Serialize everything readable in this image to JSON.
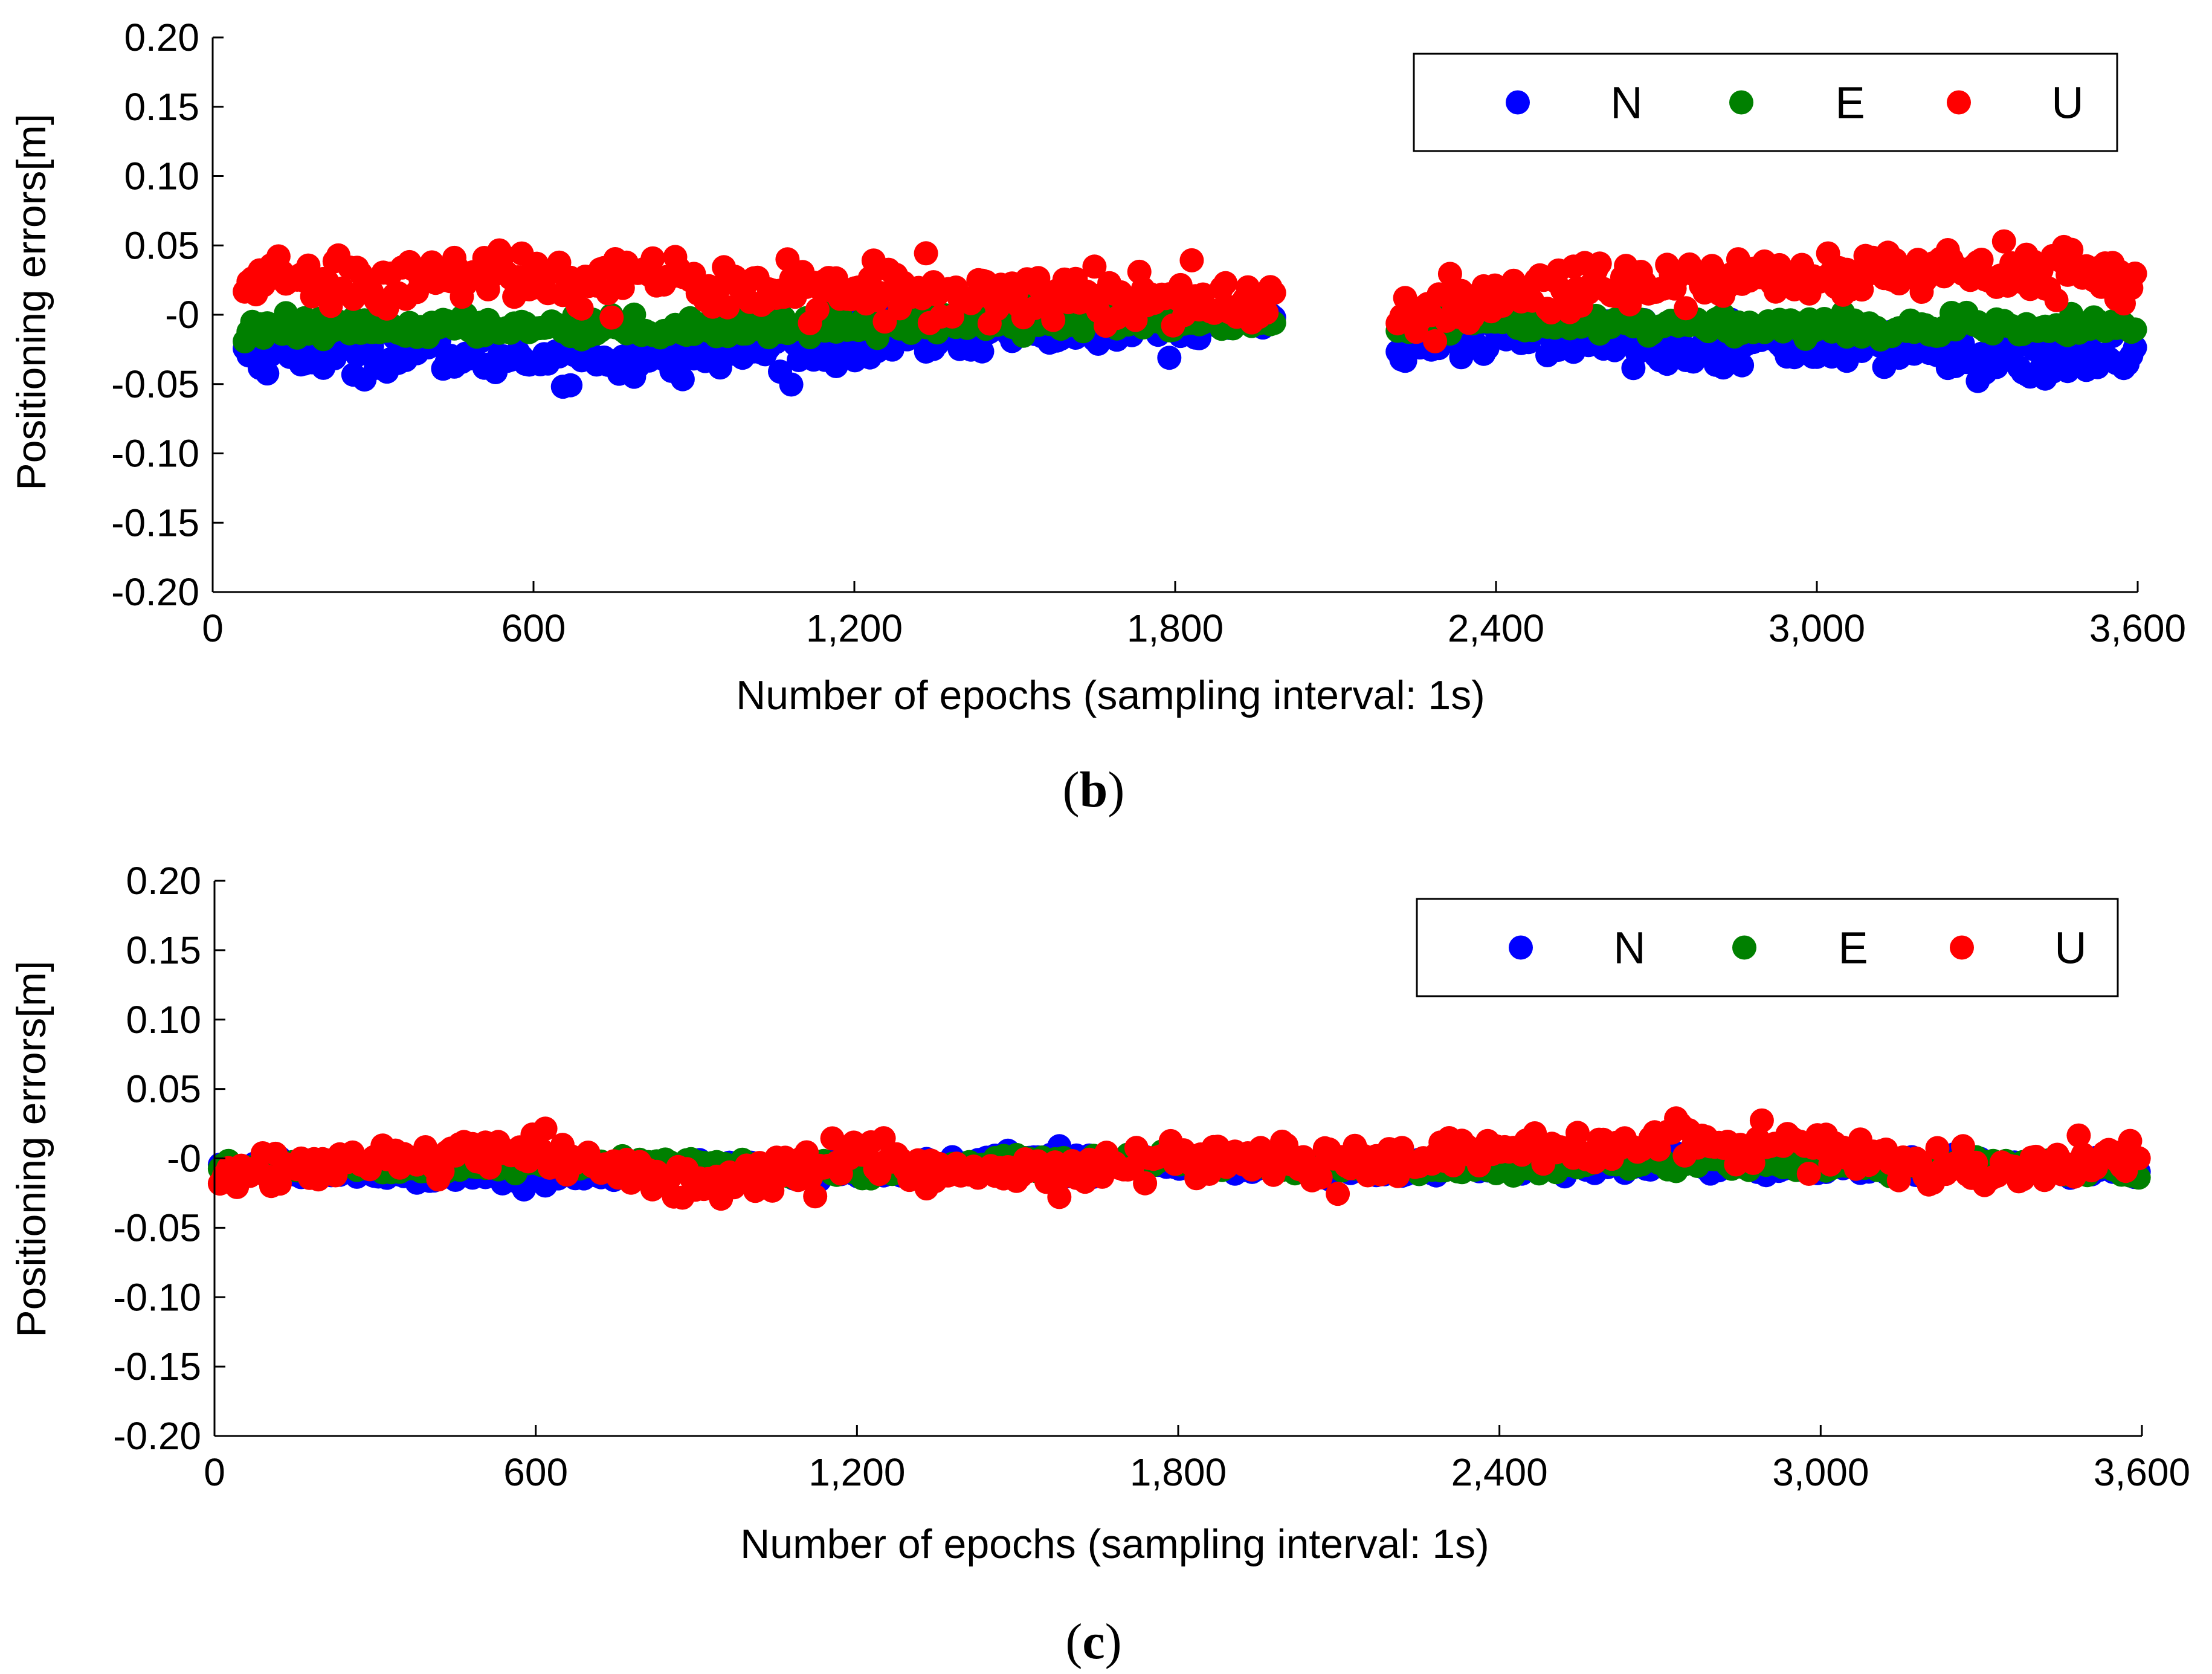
{
  "colors": {
    "N": "#0000ff",
    "E": "#008000",
    "U": "#ff0000",
    "axis": "#000000"
  },
  "chart_data": [
    {
      "type": "scatter",
      "panel_label": "b",
      "xlabel": "Number of epochs (sampling interval: 1s)",
      "ylabel": "Positioning errors[m]",
      "xlim": [
        0,
        3600
      ],
      "ylim": [
        -0.2,
        0.2
      ],
      "xticks": [
        0,
        600,
        1200,
        1800,
        2400,
        3000,
        3600
      ],
      "xtick_labels": [
        "0",
        "600",
        "1,200",
        "1,800",
        "2,400",
        "3,000",
        "3,600"
      ],
      "yticks": [
        0.2,
        0.15,
        0.1,
        0.05,
        0,
        -0.05,
        -0.1,
        -0.15,
        -0.2
      ],
      "ytick_labels": [
        "0.20",
        "0.15",
        "0.10",
        "0.05",
        "-0",
        "-0.05",
        "-0.10",
        "-0.15",
        "-0.20"
      ],
      "legend": {
        "position": "top-right",
        "entries": [
          "N",
          "E",
          "U"
        ]
      },
      "data_gap": [
        1990,
        2210
      ],
      "series": [
        {
          "name": "N",
          "x": [
            60,
            300,
            600,
            840,
            1050,
            1300,
            1500,
            1800,
            1980,
            2220,
            2400,
            2700,
            3000,
            3200,
            3380,
            3600
          ],
          "values": [
            -0.026,
            -0.028,
            -0.03,
            -0.032,
            -0.025,
            -0.018,
            -0.01,
            -0.008,
            -0.006,
            -0.018,
            -0.015,
            -0.02,
            -0.022,
            -0.025,
            -0.035,
            -0.03
          ]
        },
        {
          "name": "E",
          "x": [
            60,
            300,
            600,
            840,
            1050,
            1300,
            1500,
            1800,
            1980,
            2220,
            2400,
            2700,
            3000,
            3200,
            3380,
            3600
          ],
          "values": [
            -0.012,
            -0.01,
            -0.008,
            -0.01,
            -0.008,
            -0.006,
            -0.003,
            -0.004,
            -0.005,
            -0.008,
            -0.006,
            -0.007,
            -0.008,
            -0.01,
            -0.01,
            -0.01
          ]
        },
        {
          "name": "U",
          "x": [
            60,
            300,
            600,
            840,
            1050,
            1300,
            1500,
            1800,
            1980,
            2220,
            2400,
            2700,
            3000,
            3200,
            3380,
            3600
          ],
          "values": [
            0.028,
            0.025,
            0.03,
            0.025,
            0.02,
            0.015,
            0.015,
            0.012,
            0.008,
            -0.01,
            0.015,
            0.025,
            0.028,
            0.03,
            0.035,
            0.025
          ]
        }
      ]
    },
    {
      "type": "scatter",
      "panel_label": "c",
      "xlabel": "Number of epochs (sampling interval: 1s)",
      "ylabel": "Positioning errors[m]",
      "xlim": [
        0,
        3600
      ],
      "ylim": [
        -0.2,
        0.2
      ],
      "xticks": [
        0,
        600,
        1200,
        1800,
        2400,
        3000,
        3600
      ],
      "xtick_labels": [
        "0",
        "600",
        "1,200",
        "1,800",
        "2,400",
        "3,000",
        "3,600"
      ],
      "yticks": [
        0.2,
        0.15,
        0.1,
        0.05,
        0,
        -0.05,
        -0.1,
        -0.15,
        -0.2
      ],
      "ytick_labels": [
        "0.20",
        "0.15",
        "0.10",
        "0.05",
        "-0",
        "-0.05",
        "-0.10",
        "-0.15",
        "-0.20"
      ],
      "legend": {
        "position": "top-right",
        "entries": [
          "N",
          "E",
          "U"
        ]
      },
      "series": [
        {
          "name": "N",
          "x": [
            10,
            300,
            600,
            900,
            1200,
            1500,
            1800,
            2100,
            2400,
            2700,
            3000,
            3300,
            3600
          ],
          "values": [
            -0.008,
            -0.01,
            -0.012,
            -0.008,
            -0.01,
            0.0,
            -0.004,
            -0.008,
            -0.006,
            -0.004,
            -0.006,
            -0.004,
            -0.008
          ]
        },
        {
          "name": "E",
          "x": [
            10,
            300,
            600,
            900,
            1200,
            1500,
            1800,
            2100,
            2400,
            2700,
            3000,
            3300,
            3600
          ],
          "values": [
            -0.006,
            -0.008,
            -0.004,
            -0.004,
            -0.01,
            -0.002,
            -0.002,
            -0.006,
            -0.006,
            -0.002,
            -0.004,
            -0.004,
            -0.008
          ]
        },
        {
          "name": "U",
          "x": [
            10,
            300,
            600,
            900,
            1200,
            1500,
            1800,
            2100,
            2400,
            2700,
            3000,
            3300,
            3600
          ],
          "values": [
            -0.012,
            -0.005,
            0.005,
            -0.02,
            0.0,
            -0.015,
            0.0,
            -0.005,
            0.005,
            0.01,
            0.008,
            -0.01,
            0.0
          ]
        }
      ]
    }
  ]
}
